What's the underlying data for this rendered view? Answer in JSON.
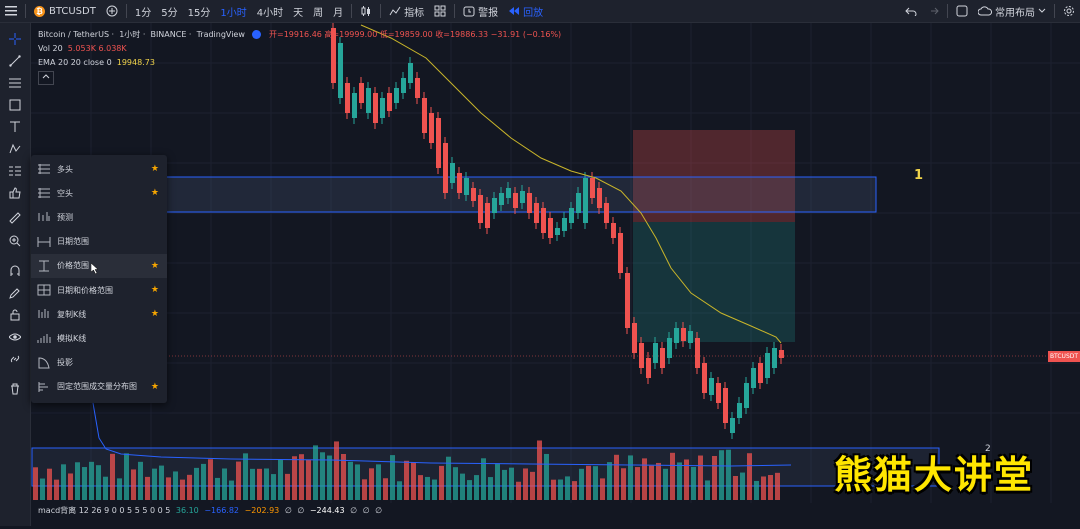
{
  "topbar": {
    "symbol": "BTCUSDT",
    "intervals": [
      "1分",
      "5分",
      "15分",
      "1小时",
      "4小时",
      "天",
      "周",
      "月"
    ],
    "active_interval": "1小时",
    "indicators_label": "指标",
    "alert_label": "警报",
    "replay_label": "回放",
    "layout_label": "常用布局"
  },
  "legend": {
    "pair": "Bitcoin / TetherUS",
    "interval": "1小时",
    "exchange": "BINANCE",
    "source": "TradingView",
    "ohlc_text": "开=19916.46 高=19999.00 低=19859.00 收=19886.33 −31.91 (−0.16%)",
    "volume_label": "Vol 20",
    "volume_values": "5.053K  6.038K",
    "ema_label": "EMA 20 20 close 0",
    "ema_value": "19948.73"
  },
  "dropdown": {
    "items": [
      {
        "label": "多头",
        "icon": "long-position-icon",
        "starred": true
      },
      {
        "label": "空头",
        "icon": "short-position-icon",
        "starred": true
      },
      {
        "label": "预测",
        "icon": "forecast-icon",
        "starred": false
      },
      {
        "label": "日期范围",
        "icon": "date-range-icon",
        "starred": false
      },
      {
        "label": "价格范围",
        "icon": "price-range-icon",
        "starred": true
      },
      {
        "label": "日期和价格范围",
        "icon": "date-price-range-icon",
        "starred": true
      },
      {
        "label": "复制K线",
        "icon": "bars-pattern-icon",
        "starred": true
      },
      {
        "label": "模拟K线",
        "icon": "ghost-feed-icon",
        "starred": false
      },
      {
        "label": "投影",
        "icon": "projection-icon",
        "starred": false
      },
      {
        "label": "固定范围成交量分布图",
        "icon": "fixed-range-volume-profile-icon",
        "starred": true
      }
    ],
    "star_glyph": "★"
  },
  "price_tag": "BTCUSDT",
  "annotation_1": "1",
  "annotation_2": "2",
  "macd_text": "macd背离 12 26 9 0 0 5 5 5 0 0 5",
  "macd_values": [
    "36.10",
    "−166.82",
    "−202.93",
    "∅",
    "∅",
    "−244.43",
    "∅",
    "∅",
    "∅"
  ],
  "watermark": "熊猫大讲堂",
  "colors": {
    "up": "#26a69a",
    "down": "#ef5350",
    "ema": "#c9b52a",
    "accent": "#2962ff",
    "star": "#f7a600"
  }
}
